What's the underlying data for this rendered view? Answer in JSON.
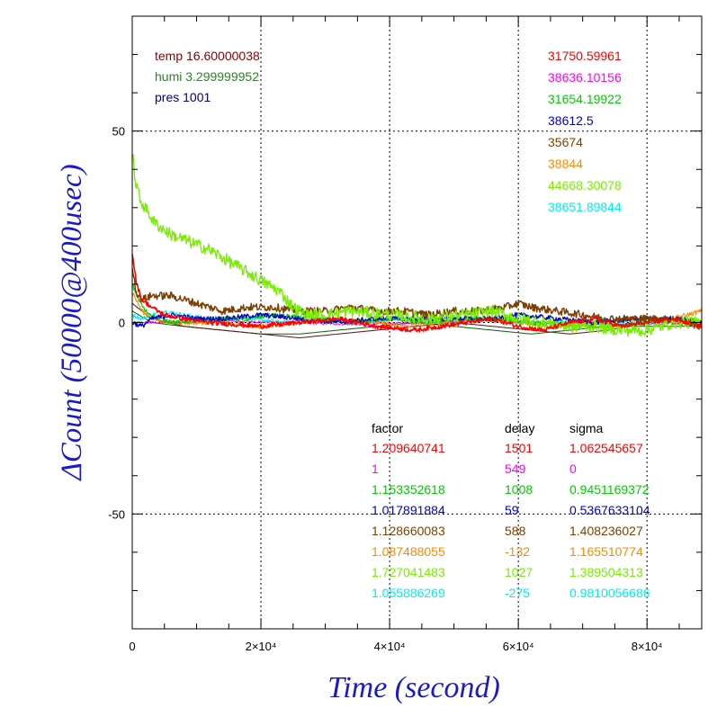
{
  "chart_data": {
    "type": "line",
    "xlabel": "Time (second)",
    "ylabel": "ΔCount (50000@400usec)",
    "xlim": [
      0,
      88500
    ],
    "ylim": [
      -80,
      80
    ],
    "grid": true,
    "x_ticks": [
      {
        "value": 0,
        "label": "0"
      },
      {
        "value": 20000,
        "label": "2×10⁴"
      },
      {
        "value": 40000,
        "label": "4×10⁴"
      },
      {
        "value": 60000,
        "label": "6×10⁴"
      },
      {
        "value": 80000,
        "label": "8×10⁴"
      }
    ],
    "y_ticks": [
      {
        "value": 50,
        "label": "50"
      },
      {
        "value": 0,
        "label": "0"
      },
      {
        "value": -50,
        "label": "-50"
      }
    ],
    "env": [
      {
        "text": "temp 16.60000038",
        "color": "#8b0000"
      },
      {
        "text": "humi 3.299999952",
        "color": "#1e8b1e"
      },
      {
        "text": "pres 1001",
        "color": "#00007f"
      }
    ],
    "table_headers": [
      "factor",
      "delay",
      "sigma"
    ],
    "series": [
      {
        "color": "#ff0000",
        "count": "31750.59961",
        "factor": "1.209640741",
        "delay": "1501",
        "sigma": "1.062545657",
        "points": [
          [
            0,
            18
          ],
          [
            700,
            10
          ],
          [
            1500,
            6
          ],
          [
            3000,
            4
          ],
          [
            5000,
            2
          ],
          [
            8000,
            1
          ],
          [
            12000,
            0
          ],
          [
            20000,
            -1
          ],
          [
            26000,
            0
          ],
          [
            32000,
            1
          ],
          [
            38000,
            -1
          ],
          [
            44000,
            -2
          ],
          [
            48000,
            -1
          ],
          [
            52000,
            0
          ],
          [
            56000,
            1
          ],
          [
            60000,
            -1
          ],
          [
            64000,
            -2
          ],
          [
            68000,
            0
          ],
          [
            72000,
            1
          ],
          [
            76000,
            -1
          ],
          [
            80000,
            0
          ],
          [
            84000,
            1
          ],
          [
            88500,
            -1
          ]
        ]
      },
      {
        "color": "#ff00ff",
        "count": "38636.10156",
        "factor": "1",
        "delay": "549",
        "sigma": "0",
        "points": [
          [
            0,
            0
          ],
          [
            5000,
            0
          ],
          [
            15000,
            0.4
          ],
          [
            25000,
            0
          ],
          [
            35000,
            -0.5
          ],
          [
            45000,
            0
          ],
          [
            55000,
            0.5
          ],
          [
            65000,
            0
          ],
          [
            75000,
            -0.5
          ],
          [
            88500,
            0
          ]
        ]
      },
      {
        "color": "#00cc00",
        "count": "31654.19922",
        "factor": "1.153352618",
        "delay": "1008",
        "sigma": "0.9451169372",
        "points": [
          [
            0,
            10
          ],
          [
            1000,
            6
          ],
          [
            2000,
            3
          ],
          [
            4000,
            1
          ],
          [
            7000,
            0
          ],
          [
            12000,
            1
          ],
          [
            18000,
            1
          ],
          [
            22000,
            2
          ],
          [
            28000,
            1
          ],
          [
            34000,
            0
          ],
          [
            40000,
            1
          ],
          [
            46000,
            0
          ],
          [
            52000,
            1
          ],
          [
            58000,
            1
          ],
          [
            62000,
            0
          ],
          [
            68000,
            -1
          ],
          [
            74000,
            -1
          ],
          [
            80000,
            0
          ],
          [
            86000,
            1
          ],
          [
            88500,
            0
          ]
        ]
      },
      {
        "color": "#0000cc",
        "count": "38612.5",
        "factor": "1.017891884",
        "delay": "59",
        "sigma": "0.5367633104",
        "points": [
          [
            0,
            0
          ],
          [
            1500,
            -1
          ],
          [
            3000,
            1
          ],
          [
            6000,
            2
          ],
          [
            10000,
            1
          ],
          [
            14000,
            1
          ],
          [
            20000,
            2
          ],
          [
            26000,
            1
          ],
          [
            32000,
            0
          ],
          [
            38000,
            1
          ],
          [
            44000,
            1
          ],
          [
            50000,
            1
          ],
          [
            56000,
            1
          ],
          [
            60000,
            2
          ],
          [
            66000,
            1
          ],
          [
            72000,
            0
          ],
          [
            78000,
            1
          ],
          [
            84000,
            1
          ],
          [
            88500,
            0
          ]
        ]
      },
      {
        "color": "#7f3f00",
        "count": "35674",
        "factor": "1.128660083",
        "delay": "588",
        "sigma": "1.408236027",
        "points": [
          [
            0,
            15
          ],
          [
            600,
            8
          ],
          [
            1500,
            6
          ],
          [
            3000,
            7
          ],
          [
            6000,
            7
          ],
          [
            10000,
            5
          ],
          [
            14000,
            3
          ],
          [
            18000,
            4
          ],
          [
            22000,
            4
          ],
          [
            26000,
            3
          ],
          [
            30000,
            3
          ],
          [
            34000,
            4
          ],
          [
            38000,
            3
          ],
          [
            42000,
            3
          ],
          [
            46000,
            2
          ],
          [
            50000,
            3
          ],
          [
            54000,
            3
          ],
          [
            58000,
            4
          ],
          [
            60000,
            5
          ],
          [
            62000,
            4
          ],
          [
            66000,
            3
          ],
          [
            70000,
            2
          ],
          [
            74000,
            1
          ],
          [
            78000,
            1
          ],
          [
            82000,
            1
          ],
          [
            86000,
            0
          ],
          [
            88500,
            -1
          ]
        ]
      },
      {
        "color": "#ff8800",
        "count": "38844",
        "factor": "1.087488055",
        "delay": "-132",
        "sigma": "1.165510774",
        "points": [
          [
            0,
            8
          ],
          [
            1500,
            3
          ],
          [
            3000,
            1
          ],
          [
            6000,
            0
          ],
          [
            12000,
            0
          ],
          [
            20000,
            -1
          ],
          [
            26000,
            0
          ],
          [
            32000,
            1
          ],
          [
            38000,
            0
          ],
          [
            42000,
            -1
          ],
          [
            48000,
            0
          ],
          [
            54000,
            1
          ],
          [
            60000,
            0
          ],
          [
            66000,
            -1
          ],
          [
            72000,
            0
          ],
          [
            78000,
            1
          ],
          [
            84000,
            1
          ],
          [
            88500,
            3
          ]
        ]
      },
      {
        "color": "#77ee00",
        "count": "44668.30078",
        "factor": "1.727041483",
        "delay": "1027",
        "sigma": "1.389504313",
        "points": [
          [
            0,
            44
          ],
          [
            500,
            37
          ],
          [
            1200,
            32
          ],
          [
            2000,
            30
          ],
          [
            3500,
            26
          ],
          [
            6000,
            23
          ],
          [
            9000,
            21
          ],
          [
            12000,
            19
          ],
          [
            15000,
            16
          ],
          [
            18000,
            13
          ],
          [
            21000,
            10
          ],
          [
            23000,
            8
          ],
          [
            25000,
            4
          ],
          [
            27000,
            2
          ],
          [
            30000,
            2
          ],
          [
            34000,
            3
          ],
          [
            40000,
            2
          ],
          [
            46000,
            1
          ],
          [
            52000,
            2
          ],
          [
            56000,
            3
          ],
          [
            60000,
            1
          ],
          [
            64000,
            0
          ],
          [
            68000,
            -1
          ],
          [
            72000,
            -1
          ],
          [
            76000,
            -2
          ],
          [
            80000,
            -2
          ],
          [
            84000,
            0
          ],
          [
            88500,
            0
          ]
        ]
      },
      {
        "color": "#00eeee",
        "count": "38651.89844",
        "factor": "1.055886269",
        "delay": "-275",
        "sigma": "0.9810056686",
        "points": [
          [
            0,
            2
          ],
          [
            1500,
            1
          ],
          [
            3000,
            2
          ],
          [
            5000,
            3
          ],
          [
            8000,
            2
          ],
          [
            12000,
            1
          ],
          [
            18000,
            1
          ],
          [
            24000,
            0
          ],
          [
            30000,
            1
          ],
          [
            36000,
            0
          ],
          [
            42000,
            1
          ],
          [
            48000,
            0
          ],
          [
            54000,
            1
          ],
          [
            60000,
            0
          ],
          [
            66000,
            0
          ],
          [
            72000,
            1
          ],
          [
            78000,
            0
          ],
          [
            84000,
            1
          ],
          [
            88500,
            0
          ]
        ]
      }
    ],
    "extra_lines": [
      {
        "color": "#006600",
        "points": [
          [
            0,
            3
          ],
          [
            3000,
            0
          ],
          [
            8000,
            -1
          ],
          [
            14000,
            -2
          ],
          [
            20000,
            -3
          ],
          [
            26000,
            -3
          ],
          [
            32000,
            -2
          ],
          [
            38000,
            -1
          ],
          [
            44000,
            0
          ],
          [
            50000,
            -1
          ],
          [
            56000,
            -2
          ],
          [
            62000,
            -3
          ],
          [
            68000,
            -2
          ],
          [
            74000,
            -1
          ],
          [
            80000,
            -1
          ],
          [
            86000,
            -1
          ],
          [
            88500,
            -1
          ]
        ]
      },
      {
        "color": "#5a1010",
        "points": [
          [
            0,
            5
          ],
          [
            3000,
            1
          ],
          [
            8000,
            -1
          ],
          [
            14000,
            -2
          ],
          [
            20000,
            -3
          ],
          [
            26000,
            -4
          ],
          [
            32000,
            -3
          ],
          [
            38000,
            -2
          ],
          [
            44000,
            -1
          ],
          [
            50000,
            0
          ],
          [
            56000,
            -1
          ],
          [
            62000,
            -2
          ],
          [
            68000,
            -3
          ],
          [
            74000,
            -2
          ],
          [
            80000,
            0
          ],
          [
            86000,
            1
          ],
          [
            88500,
            0
          ]
        ]
      }
    ]
  }
}
